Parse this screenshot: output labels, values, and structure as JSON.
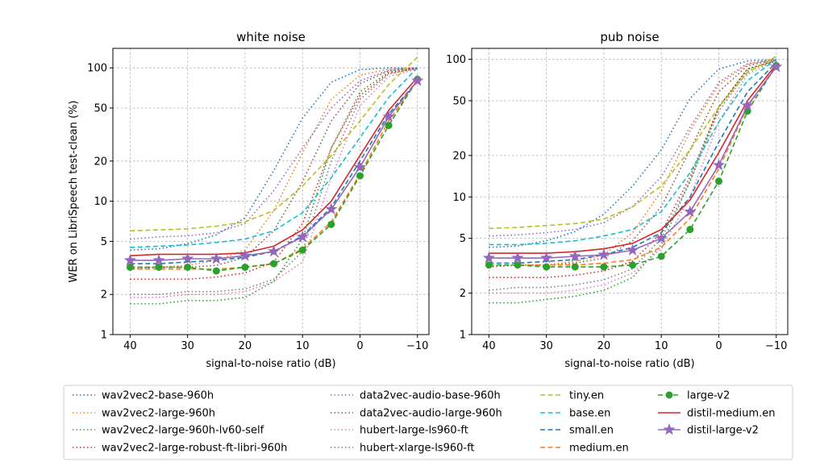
{
  "chart_data": [
    {
      "type": "line",
      "title": "white noise",
      "xlabel": "signal-to-noise ratio (dB)",
      "ylabel": "WER on LibriSpeech test-clean (%)",
      "yscale": "log",
      "xlim": [
        43,
        -12
      ],
      "ylim": [
        1,
        140
      ],
      "grid": true,
      "x": [
        40,
        35,
        30,
        25,
        20,
        15,
        10,
        5,
        0,
        -5,
        -10
      ],
      "xticks": [
        "40",
        "30",
        "20",
        "10",
        "0",
        "−10"
      ],
      "yticks": [
        "1",
        "2",
        "5",
        "10",
        "20",
        "50",
        "100"
      ],
      "series": [
        {
          "name": "wav2vec2-base-960h",
          "color": "#1f77b4",
          "style": "dotted",
          "marker": "none",
          "values": [
            4.3,
            4.4,
            4.8,
            5.6,
            7.5,
            17,
            42,
            78,
            97,
            100,
            100
          ]
        },
        {
          "name": "wav2vec2-large-960h",
          "color": "#ff7f0e",
          "style": "dotted",
          "marker": "none",
          "values": [
            3.2,
            3.2,
            3.3,
            3.6,
            4.3,
            8.5,
            23,
            58,
            88,
            98,
            100
          ]
        },
        {
          "name": "wav2vec2-large-960h-lv60-self",
          "color": "#2ca02c",
          "style": "dotted",
          "marker": "none",
          "values": [
            1.7,
            1.7,
            1.8,
            1.8,
            1.9,
            2.5,
            5.2,
            25,
            66,
            93,
            99
          ]
        },
        {
          "name": "wav2vec2-large-robust-ft-libri-960h",
          "color": "#d62728",
          "style": "dotted",
          "marker": "none",
          "values": [
            2.6,
            2.6,
            2.6,
            2.7,
            2.9,
            3.5,
            6.8,
            25,
            62,
            91,
            99
          ]
        },
        {
          "name": "data2vec-audio-base-960h",
          "color": "#9467bd",
          "style": "dotted",
          "marker": "none",
          "values": [
            5.2,
            5.4,
            5.5,
            5.8,
            6.8,
            12,
            25,
            50,
            80,
            96,
            100
          ]
        },
        {
          "name": "data2vec-audio-large-960h",
          "color": "#8c564b",
          "style": "dotted",
          "marker": "none",
          "values": [
            3.1,
            3.2,
            3.2,
            3.3,
            3.8,
            6.0,
            14,
            40,
            76,
            95,
            100
          ]
        },
        {
          "name": "hubert-large-ls960-ft",
          "color": "#e377c2",
          "style": "dotted",
          "marker": "none",
          "values": [
            1.9,
            1.9,
            2.0,
            2.0,
            2.1,
            2.5,
            3.5,
            15,
            52,
            86,
            98
          ]
        },
        {
          "name": "hubert-xlarge-ls960-ft",
          "color": "#7f7f7f",
          "style": "dotted",
          "marker": "none",
          "values": [
            2.0,
            2.0,
            2.1,
            2.1,
            2.2,
            2.6,
            4.2,
            20,
            58,
            90,
            99
          ]
        },
        {
          "name": "tiny.en",
          "color": "#bcbd22",
          "style": "dashed",
          "marker": "none",
          "values": [
            6.0,
            6.1,
            6.2,
            6.5,
            7.0,
            8.5,
            13,
            22,
            40,
            75,
            120
          ]
        },
        {
          "name": "base.en",
          "color": "#17becf",
          "style": "dashed",
          "marker": "none",
          "values": [
            4.5,
            4.6,
            4.7,
            4.9,
            5.2,
            6.0,
            8.2,
            15,
            30,
            60,
            100
          ]
        },
        {
          "name": "small.en",
          "color": "#1f77b4",
          "style": "dashed",
          "marker": "none",
          "values": [
            3.4,
            3.4,
            3.5,
            3.6,
            3.8,
            4.2,
            5.5,
            9.0,
            20,
            45,
            80
          ]
        },
        {
          "name": "medium.en",
          "color": "#ff7f0e",
          "style": "dashed",
          "marker": "none",
          "values": [
            3.1,
            3.1,
            3.1,
            3.1,
            3.2,
            3.4,
            4.4,
            7.0,
            16,
            40,
            80
          ]
        },
        {
          "name": "large-v2",
          "color": "#2ca02c",
          "style": "dashed",
          "marker": "circle",
          "values": [
            3.2,
            3.2,
            3.2,
            3.0,
            3.2,
            3.4,
            4.3,
            6.7,
            15.5,
            37,
            82
          ]
        },
        {
          "name": "distil-medium.en",
          "color": "#d62728",
          "style": "solid",
          "marker": "none",
          "values": [
            3.9,
            4.0,
            4.0,
            4.0,
            4.1,
            4.6,
            6.1,
            10,
            22,
            48,
            85
          ]
        },
        {
          "name": "distil-large-v2",
          "color": "#9467bd",
          "style": "solid",
          "marker": "star",
          "values": [
            3.6,
            3.6,
            3.7,
            3.7,
            3.9,
            4.2,
            5.4,
            8.7,
            18,
            43,
            80
          ]
        }
      ]
    },
    {
      "type": "line",
      "title": "pub noise",
      "xlabel": "signal-to-noise ratio (dB)",
      "ylabel": "",
      "yscale": "log",
      "xlim": [
        43,
        -12
      ],
      "ylim": [
        1,
        120
      ],
      "grid": true,
      "x": [
        40,
        35,
        30,
        25,
        20,
        15,
        10,
        5,
        0,
        -5,
        -10
      ],
      "xticks": [
        "40",
        "30",
        "20",
        "10",
        "0",
        "−10"
      ],
      "yticks": [
        "1",
        "2",
        "5",
        "10",
        "20",
        "50",
        "100"
      ],
      "series": [
        {
          "name": "wav2vec2-base-960h",
          "color": "#1f77b4",
          "style": "dotted",
          "marker": "none",
          "values": [
            4.3,
            4.4,
            4.8,
            5.6,
            7.5,
            12,
            22,
            52,
            85,
            97,
            100
          ]
        },
        {
          "name": "wav2vec2-large-960h",
          "color": "#ff7f0e",
          "style": "dotted",
          "marker": "none",
          "values": [
            3.1,
            3.2,
            3.2,
            3.4,
            3.8,
            5.5,
            11,
            30,
            65,
            92,
            100
          ]
        },
        {
          "name": "wav2vec2-large-960h-lv60-self",
          "color": "#2ca02c",
          "style": "dotted",
          "marker": "none",
          "values": [
            1.7,
            1.7,
            1.8,
            1.9,
            2.1,
            2.6,
            4.5,
            13,
            45,
            85,
            98
          ]
        },
        {
          "name": "wav2vec2-large-robust-ft-libri-960h",
          "color": "#d62728",
          "style": "dotted",
          "marker": "none",
          "values": [
            2.6,
            2.6,
            2.6,
            2.7,
            2.9,
            3.4,
            5.5,
            14,
            45,
            85,
            98
          ]
        },
        {
          "name": "data2vec-audio-base-960h",
          "color": "#9467bd",
          "style": "dotted",
          "marker": "none",
          "values": [
            5.2,
            5.3,
            5.5,
            5.8,
            6.5,
            8.5,
            14,
            32,
            68,
            93,
            100
          ]
        },
        {
          "name": "data2vec-audio-large-960h",
          "color": "#8c564b",
          "style": "dotted",
          "marker": "none",
          "values": [
            3.1,
            3.2,
            3.2,
            3.3,
            3.6,
            4.8,
            8.5,
            22,
            58,
            90,
            99
          ]
        },
        {
          "name": "hubert-large-ls960-ft",
          "color": "#e377c2",
          "style": "dotted",
          "marker": "none",
          "values": [
            2.0,
            2.0,
            2.0,
            2.1,
            2.3,
            2.8,
            4.2,
            10,
            35,
            78,
            97
          ]
        },
        {
          "name": "hubert-xlarge-ls960-ft",
          "color": "#7f7f7f",
          "style": "dotted",
          "marker": "none",
          "values": [
            2.1,
            2.2,
            2.2,
            2.3,
            2.5,
            3.0,
            5.0,
            13,
            42,
            82,
            98
          ]
        },
        {
          "name": "tiny.en",
          "color": "#bcbd22",
          "style": "dashed",
          "marker": "none",
          "values": [
            5.9,
            6.0,
            6.2,
            6.4,
            6.9,
            8.5,
            12,
            22,
            45,
            80,
            105
          ]
        },
        {
          "name": "base.en",
          "color": "#17becf",
          "style": "dashed",
          "marker": "none",
          "values": [
            4.5,
            4.5,
            4.6,
            4.8,
            5.2,
            5.8,
            7.8,
            15,
            35,
            70,
            100
          ]
        },
        {
          "name": "small.en",
          "color": "#1f77b4",
          "style": "dashed",
          "marker": "none",
          "values": [
            3.3,
            3.3,
            3.4,
            3.5,
            3.8,
            4.3,
            5.5,
            10,
            25,
            58,
            95
          ]
        },
        {
          "name": "medium.en",
          "color": "#ff7f0e",
          "style": "dashed",
          "marker": "none",
          "values": [
            3.2,
            3.2,
            3.2,
            3.2,
            3.3,
            3.5,
            4.3,
            7.0,
            16,
            45,
            90
          ]
        },
        {
          "name": "large-v2",
          "color": "#2ca02c",
          "style": "dashed",
          "marker": "circle",
          "values": [
            3.2,
            3.2,
            3.1,
            3.1,
            3.1,
            3.2,
            3.7,
            5.8,
            13,
            42,
            90
          ]
        },
        {
          "name": "distil-medium.en",
          "color": "#d62728",
          "style": "solid",
          "marker": "none",
          "values": [
            3.9,
            3.9,
            3.9,
            4.0,
            4.2,
            4.6,
            5.8,
            9.5,
            21,
            50,
            92
          ]
        },
        {
          "name": "distil-large-v2",
          "color": "#9467bd",
          "style": "solid",
          "marker": "star",
          "values": [
            3.6,
            3.6,
            3.6,
            3.7,
            3.8,
            4.1,
            5.0,
            7.8,
            17,
            46,
            88
          ]
        }
      ]
    }
  ]
}
